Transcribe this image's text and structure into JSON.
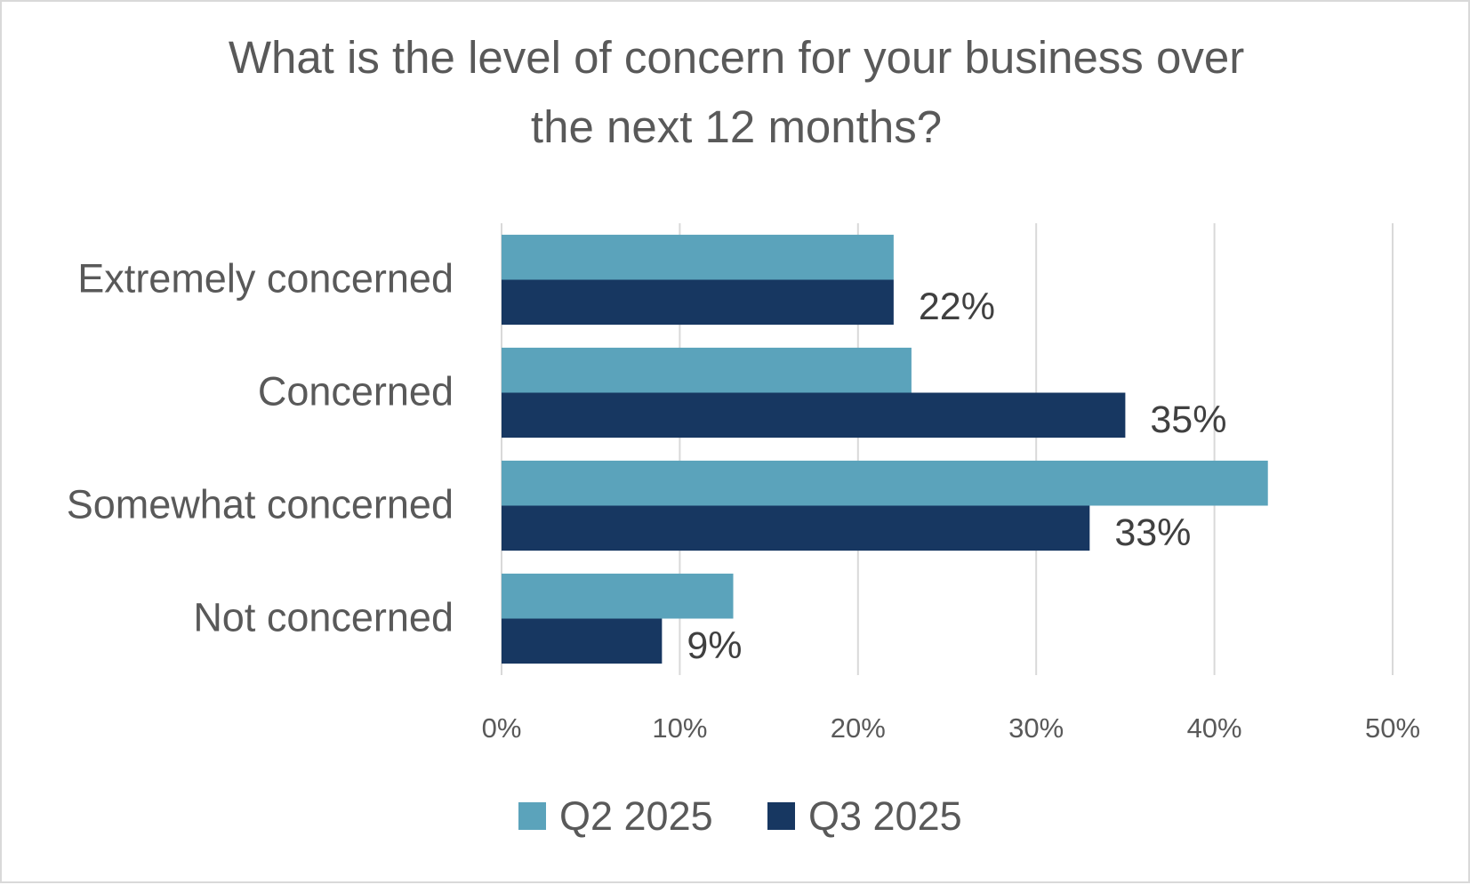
{
  "chart_data": {
    "type": "bar",
    "orientation": "horizontal",
    "title_lines": [
      "What is the level of concern for your business over",
      "the next 12 months?"
    ],
    "categories": [
      "Extremely concerned",
      "Concerned",
      "Somewhat concerned",
      "Not concerned"
    ],
    "series": [
      {
        "name": "Q2 2025",
        "color": "#5ba3bb",
        "values": [
          22,
          23,
          43,
          13
        ]
      },
      {
        "name": "Q3 2025",
        "color": "#173761",
        "values": [
          22,
          35,
          33,
          9
        ]
      }
    ],
    "data_labels": [
      "22%",
      "35%",
      "33%",
      "9%"
    ],
    "x_ticks": [
      "0%",
      "10%",
      "20%",
      "30%",
      "40%",
      "50%"
    ],
    "xlim": [
      0,
      50
    ],
    "xlabel": "",
    "ylabel": "",
    "grid": true,
    "legend_position": "bottom"
  }
}
